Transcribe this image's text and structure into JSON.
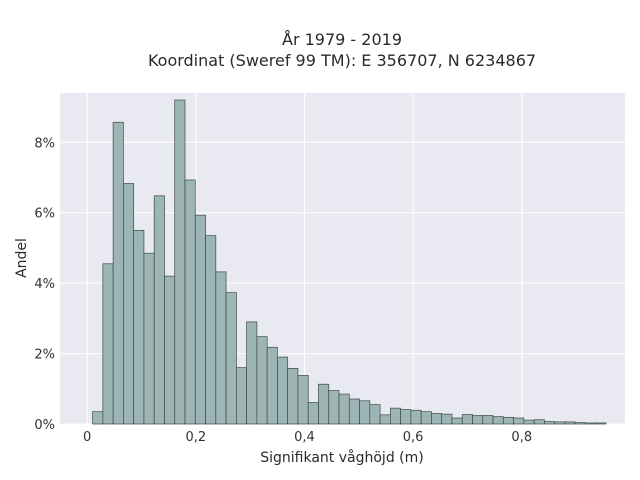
{
  "chart_data": {
    "type": "bar",
    "title_lines": [
      "År 1979 - 2019",
      "Koordinat (Sweref 99 TM): E 356707, N 6234867"
    ],
    "xlabel": "Signifikant våghöjd (m)",
    "ylabel": "Andel",
    "xlim": [
      -0.05,
      0.99
    ],
    "ylim": [
      0,
      0.094
    ],
    "x_ticks": [
      0,
      0.2,
      0.4,
      0.6,
      0.8
    ],
    "x_tick_labels": [
      "0",
      "0,2",
      "0,4",
      "0,6",
      "0,8"
    ],
    "y_ticks": [
      0,
      0.02,
      0.04,
      0.06,
      0.08
    ],
    "y_tick_labels": [
      "0%",
      "2%",
      "4%",
      "6%",
      "8%"
    ],
    "grid": true,
    "bin_start": 0.01,
    "bin_width": 0.0189,
    "values": [
      0.0035,
      0.0455,
      0.0857,
      0.0683,
      0.055,
      0.0485,
      0.0648,
      0.042,
      0.092,
      0.0693,
      0.0593,
      0.0535,
      0.0432,
      0.0373,
      0.016,
      0.029,
      0.0248,
      0.0218,
      0.019,
      0.0158,
      0.0138,
      0.0061,
      0.0113,
      0.0095,
      0.0085,
      0.0071,
      0.0066,
      0.0055,
      0.0026,
      0.0045,
      0.0041,
      0.0039,
      0.0035,
      0.003,
      0.0028,
      0.0017,
      0.0027,
      0.0024,
      0.0024,
      0.0021,
      0.0019,
      0.0017,
      0.0011,
      0.0012,
      0.0007,
      0.0006,
      0.0006,
      0.0004,
      0.0003,
      0.0003
    ],
    "colors": {
      "bar_fill": "#9eb5b5",
      "bar_stroke": "#3a4a4a",
      "plot_bg": "#e9e9f1",
      "grid": "#ffffff"
    }
  }
}
